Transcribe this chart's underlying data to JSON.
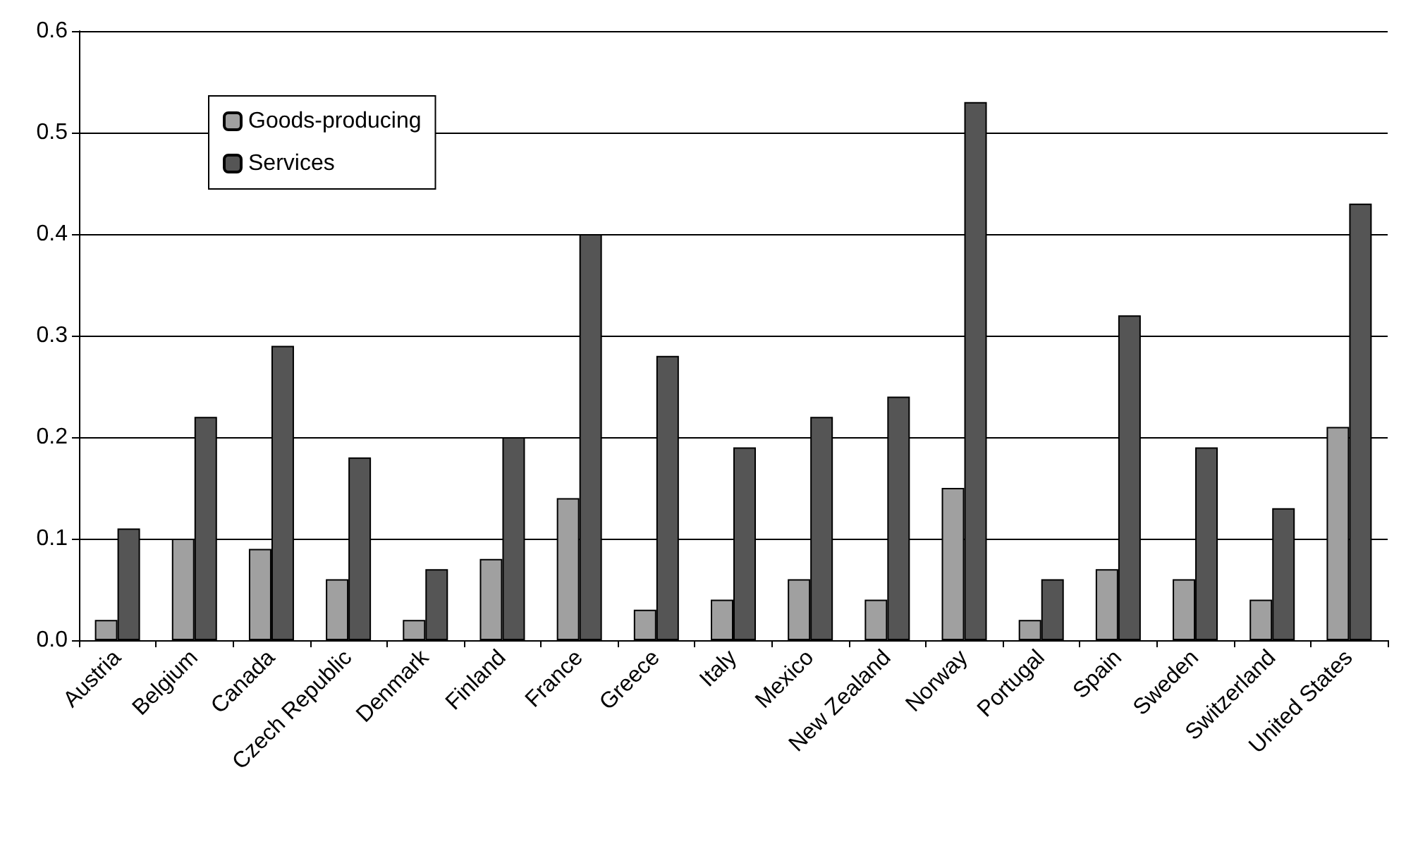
{
  "chart_data": {
    "type": "bar",
    "categories": [
      "Austria",
      "Belgium",
      "Canada",
      "Czech Republic",
      "Denmark",
      "Finland",
      "France",
      "Greece",
      "Italy",
      "Mexico",
      "New Zealand",
      "Norway",
      "Portugal",
      "Spain",
      "Sweden",
      "Switzerland",
      "United States"
    ],
    "series": [
      {
        "name": "Goods-producing",
        "color": "#a0a0a0",
        "values": [
          0.02,
          0.1,
          0.09,
          0.06,
          0.02,
          0.08,
          0.14,
          0.03,
          0.04,
          0.06,
          0.04,
          0.15,
          0.02,
          0.07,
          0.06,
          0.04,
          0.21
        ]
      },
      {
        "name": "Services",
        "color": "#555555",
        "values": [
          0.11,
          0.22,
          0.29,
          0.18,
          0.07,
          0.2,
          0.4,
          0.28,
          0.19,
          0.22,
          0.24,
          0.53,
          0.06,
          0.32,
          0.19,
          0.13,
          0.43
        ]
      }
    ],
    "ylim": [
      0,
      0.6
    ],
    "yticks": [
      {
        "value": 0,
        "label": "0.0"
      },
      0.1,
      0.2,
      0.3,
      0.4,
      0.5,
      0.6
    ],
    "grid": "y",
    "legend": "top left"
  }
}
